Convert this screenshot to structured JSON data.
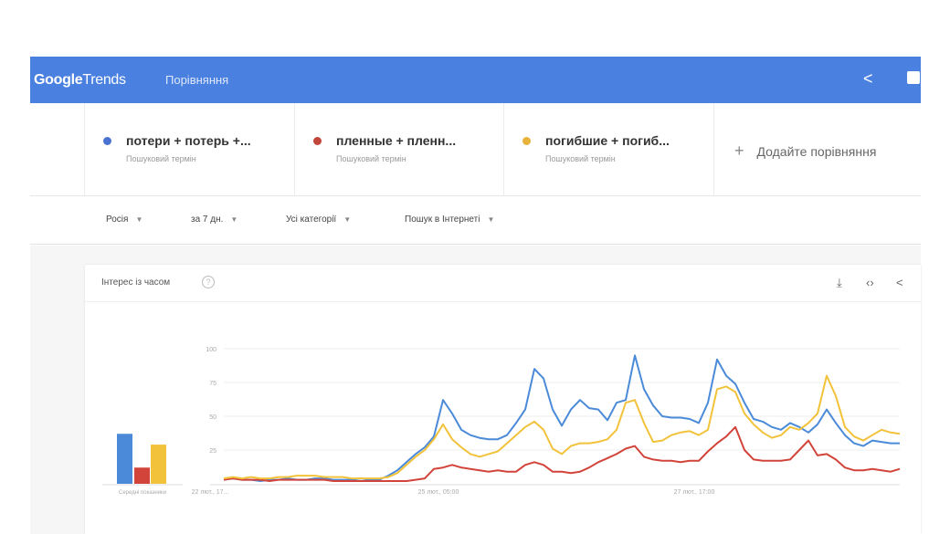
{
  "header": {
    "logo_google": "Google",
    "logo_trends": "Trends",
    "title": "Порівняння",
    "share_icon": "share-icon",
    "feedback_icon": "feedback-icon"
  },
  "terms": [
    {
      "name": "потери + потерь +...",
      "sub": "Пошуковий термін",
      "color": "#4a72d0"
    },
    {
      "name": "пленные + пленн...",
      "sub": "Пошуковий термін",
      "color": "#c0453a"
    },
    {
      "name": "погибшие + погиб...",
      "sub": "Пошуковий термін",
      "color": "#e8b33c"
    }
  ],
  "add_compare": "Додайте порівняння",
  "filters": [
    "Росія",
    "за 7 дн.",
    "Усі категорії",
    "Пошук в Інтернеті"
  ],
  "card": {
    "title": "Інтерес із часом",
    "help": "?",
    "icons": [
      "download-icon",
      "embed-icon",
      "share-icon"
    ]
  },
  "chart_data": {
    "type": "line",
    "title": "Інтерес із часом",
    "ylim": [
      0,
      100
    ],
    "yticks": [
      "100",
      "75",
      "50",
      "25"
    ],
    "xticks": [
      "22 лют., 17...",
      "25 лют., 05:00",
      "27 лют., 17:00"
    ],
    "grid": true,
    "average_label": "Середні показники",
    "averages": [
      37,
      12,
      29
    ],
    "colors": [
      "#4a8ad8",
      "#d2443a",
      "#f2c23a"
    ],
    "series": [
      {
        "name": "потери + потерь +...",
        "values": [
          3,
          4,
          3,
          3,
          2,
          3,
          3,
          4,
          3,
          3,
          4,
          4,
          3,
          3,
          3,
          4,
          3,
          3,
          6,
          10,
          16,
          22,
          27,
          35,
          62,
          52,
          40,
          36,
          34,
          33,
          33,
          36,
          45,
          55,
          85,
          78,
          55,
          43,
          55,
          62,
          56,
          55,
          47,
          60,
          62,
          95,
          70,
          58,
          50,
          49,
          49,
          48,
          45,
          60,
          92,
          80,
          74,
          60,
          48,
          46,
          42,
          40,
          45,
          42,
          38,
          44,
          55,
          45,
          36,
          30,
          28,
          32,
          31,
          30,
          30
        ]
      },
      {
        "name": "пленные + пленн...",
        "values": [
          3,
          4,
          3,
          3,
          3,
          2,
          3,
          3,
          3,
          3,
          3,
          3,
          2,
          2,
          2,
          2,
          2,
          2,
          2,
          2,
          2,
          3,
          4,
          11,
          12,
          14,
          12,
          11,
          10,
          9,
          10,
          9,
          9,
          14,
          16,
          14,
          9,
          9,
          8,
          9,
          12,
          16,
          19,
          22,
          26,
          28,
          20,
          18,
          17,
          17,
          16,
          17,
          17,
          24,
          30,
          35,
          42,
          25,
          18,
          17,
          17,
          17,
          18,
          25,
          32,
          21,
          22,
          18,
          12,
          10,
          10,
          11,
          10,
          9,
          11
        ]
      },
      {
        "name": "погибшие + погиб...",
        "values": [
          4,
          5,
          4,
          5,
          4,
          4,
          5,
          5,
          6,
          6,
          6,
          5,
          5,
          5,
          4,
          4,
          4,
          4,
          5,
          8,
          14,
          20,
          25,
          33,
          44,
          33,
          27,
          22,
          20,
          22,
          24,
          30,
          36,
          42,
          46,
          40,
          26,
          22,
          28,
          30,
          30,
          31,
          33,
          40,
          60,
          62,
          45,
          31,
          32,
          36,
          38,
          39,
          36,
          40,
          70,
          72,
          68,
          52,
          44,
          38,
          34,
          36,
          42,
          40,
          45,
          52,
          80,
          65,
          42,
          35,
          32,
          36,
          40,
          38,
          37
        ]
      }
    ]
  }
}
